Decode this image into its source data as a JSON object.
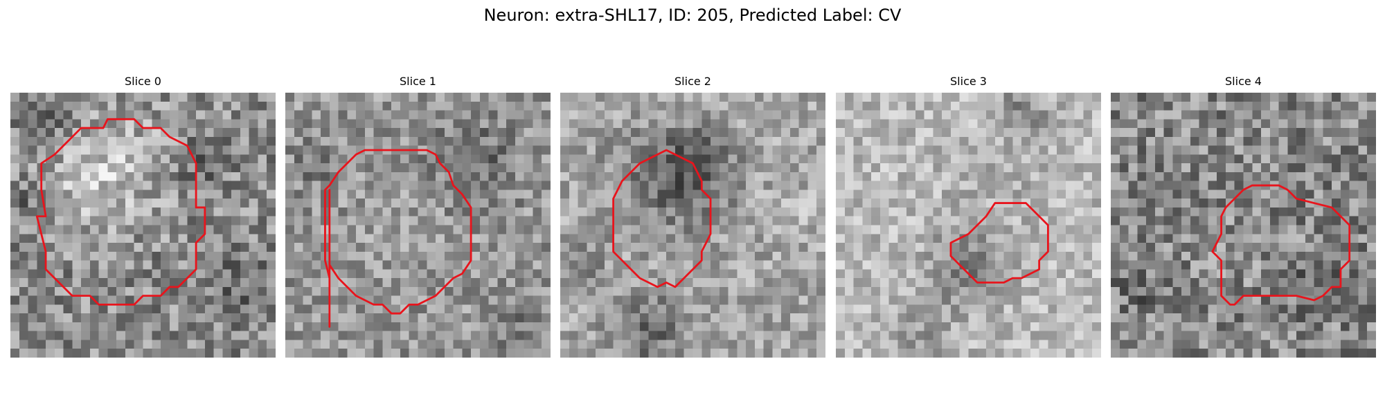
{
  "figure": {
    "title": "Neuron: extra-SHL17, ID: 205, Predicted Label: CV"
  },
  "contour_color": "#e8141c",
  "panels": [
    {
      "title": "Slice 0"
    },
    {
      "title": "Slice 1"
    },
    {
      "title": "Slice 2"
    },
    {
      "title": "Slice 3"
    },
    {
      "title": "Slice 4"
    }
  ]
}
